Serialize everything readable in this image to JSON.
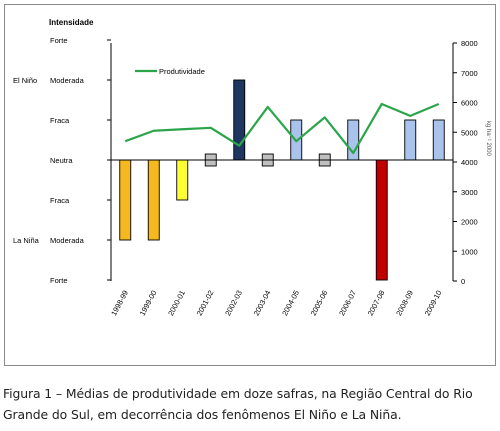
{
  "chart_data": {
    "type": "bar",
    "categories": [
      "1998-99",
      "1999-00",
      "2000-01",
      "2001-02",
      "2002-03",
      "2003-04",
      "2004-05",
      "2005-06",
      "2006-07",
      "2007-08",
      "2008-09",
      "2009-10"
    ],
    "left_axis": {
      "title": "Intensidade",
      "levels": [
        {
          "value": -3,
          "label": "Forte"
        },
        {
          "value": -2,
          "label": "Moderada"
        },
        {
          "value": -1,
          "label": "Fraca"
        },
        {
          "value": 0,
          "label": "Neutra"
        },
        {
          "value": 1,
          "label": "Fraca"
        },
        {
          "value": 2,
          "label": "Moderada"
        },
        {
          "value": 3,
          "label": "Forte"
        }
      ],
      "groups": [
        {
          "label": "El Niño",
          "level": 2
        },
        {
          "label": "La Niña",
          "level": -2
        }
      ]
    },
    "right_axis": {
      "label": "kg ha⁻¹ 2000",
      "ticks": [
        0,
        1000,
        2000,
        3000,
        4000,
        5000,
        6000,
        7000,
        8000
      ],
      "ylim": [
        0,
        8000
      ]
    },
    "bars": {
      "name": "Intensidade",
      "values": [
        -2,
        -2,
        -1,
        0,
        2,
        0,
        1,
        0,
        1,
        -3,
        1,
        1
      ],
      "colors": [
        "#f5b81f",
        "#f5b81f",
        "#ffff33",
        "#bfbfbf",
        "#1f3660",
        "#bfbfbf",
        "#a9c3ec",
        "#bfbfbf",
        "#a9c3ec",
        "#c00000",
        "#a9c3ec",
        "#a9c3ec"
      ]
    },
    "line": {
      "name": "Produtividade",
      "color": "#2ba54a",
      "values": [
        4700,
        5050,
        5100,
        5150,
        4550,
        5850,
        4700,
        5500,
        4300,
        5950,
        5550,
        5950
      ]
    },
    "legend": {
      "label": "Produtividade",
      "position": "top-left"
    }
  },
  "caption": "Figura 1 – Médias de produtividade em doze safras, na Região Central do Rio Grande do Sul, em decorrência dos fenômenos El Niño e La Niña."
}
